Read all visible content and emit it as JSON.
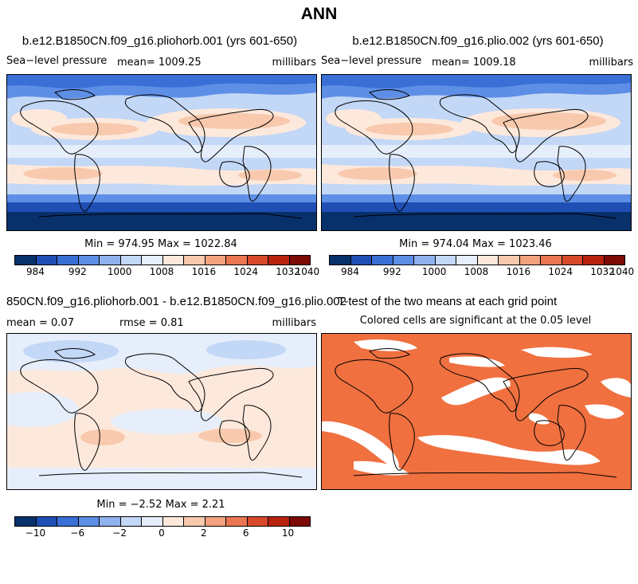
{
  "figure": {
    "title": "ANN"
  },
  "panels": [
    {
      "title": "b.e12.B1850CN.f09_g16.pliohorb.001 (yrs 601-650)",
      "variable": "Sea−level pressure",
      "mean_text": "mean= 1009.25",
      "units": "millibars",
      "minmax_text": "Min = 974.95 Max = 1022.84"
    },
    {
      "title": "b.e12.B1850CN.f09_g16.plio.002 (yrs 601-650)",
      "variable": "Sea−level pressure",
      "mean_text": "mean= 1009.18",
      "units": "millibars",
      "minmax_text": "Min = 974.04 Max = 1023.46"
    },
    {
      "title": "850CN.f09_g16.pliohorb.001 - b.e12.B1850CN.f09_g16.plio.002",
      "mean_text": "mean =    0.07",
      "rmse_text": "rmse =    0.81",
      "units": "millibars",
      "minmax_text": "Min =  −2.52 Max =    2.21"
    },
    {
      "title": "T-test of the two means at each grid point",
      "subtitle": "Colored cells are significant at the 0.05 level"
    }
  ],
  "colorbar_abs": {
    "colors": [
      "#08306b",
      "#1f4fb4",
      "#3a6fd6",
      "#5e8fe6",
      "#8fb2ef",
      "#c3d7f6",
      "#e5eefa",
      "#fde9dc",
      "#f8c9ad",
      "#f2a27e",
      "#ea7652",
      "#d8492a",
      "#b82310",
      "#7c0a06"
    ],
    "labels": [
      "984",
      "992",
      "1000",
      "1008",
      "1016",
      "1024",
      "1032",
      "1040"
    ]
  },
  "colorbar_diff": {
    "colors": [
      "#08306b",
      "#1f4fb4",
      "#3a6fd6",
      "#5e8fe6",
      "#8fb2ef",
      "#c3d7f6",
      "#e5eefa",
      "#fde9dc",
      "#f8c9ad",
      "#f2a27e",
      "#ea7652",
      "#d8492a",
      "#b82310",
      "#7c0a06"
    ],
    "labels": [
      "−10",
      "−6",
      "−2",
      "0",
      "2",
      "6",
      "10"
    ]
  },
  "significance_color": "#f07040"
}
